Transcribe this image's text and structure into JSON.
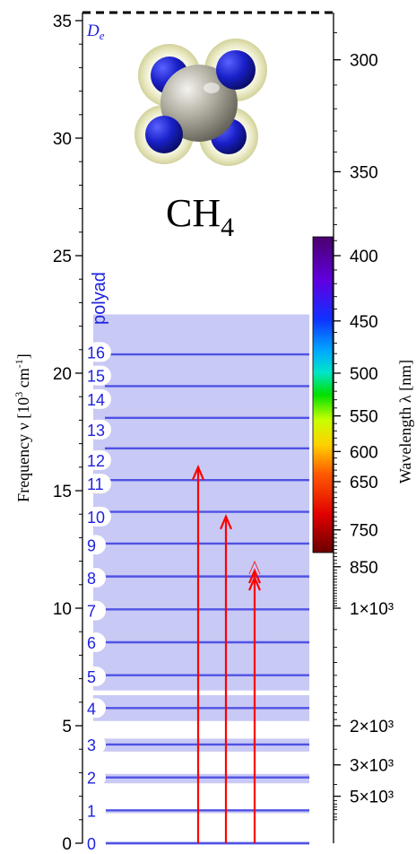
{
  "chart_data": {
    "type": "energy-level-diagram",
    "molecule": {
      "base": "CH",
      "subscript": "4"
    },
    "dissociation_label": {
      "main": "D",
      "subscript": "e"
    },
    "dissociation_energy": 36.5,
    "left_axis": {
      "label": {
        "pre": "Frequency ",
        "nu": "ν",
        "open": " [10",
        "exp": "3",
        "mid": " cm",
        "exp2": "-1",
        "close": "]"
      },
      "range": [
        0,
        36.5
      ],
      "major_ticks": [
        0,
        5,
        10,
        15,
        20,
        25,
        30,
        35
      ],
      "tick_labels": [
        "0",
        "5",
        "10",
        "15",
        "20",
        "25",
        "30",
        "35"
      ],
      "minor_step": 1
    },
    "right_axis": {
      "label": {
        "pre": "Wavelength ",
        "lambda": "λ",
        "unit": " [nm]"
      },
      "major_ticks_nm": [
        300,
        350,
        400,
        450,
        500,
        550,
        600,
        650,
        750,
        850,
        1000,
        2000,
        3000,
        5000
      ],
      "tick_labels": [
        "300",
        "350",
        "400",
        "450",
        "500",
        "550",
        "600",
        "650",
        "750",
        "850",
        "1×10³",
        "2×10³",
        "3×10³",
        "5×10³"
      ],
      "minor_ticks_nm": [
        290,
        310,
        320,
        330,
        340,
        360,
        370,
        380,
        390,
        410,
        420,
        430,
        440,
        460,
        470,
        480,
        490,
        510,
        520,
        530,
        540,
        560,
        570,
        580,
        590,
        610,
        620,
        630,
        640,
        660,
        670,
        680,
        690,
        700,
        710,
        720,
        730,
        740,
        760,
        770,
        780,
        790,
        800,
        810,
        820,
        830,
        840,
        860,
        870,
        880,
        890,
        900,
        910,
        920,
        930,
        940,
        950,
        960,
        970,
        980,
        990,
        1100,
        1200,
        1300,
        1400,
        1500,
        1600,
        1700,
        1800,
        1900,
        2500,
        4000,
        5500,
        6000,
        6500,
        7000,
        8000,
        9000,
        10000
      ]
    },
    "polyad_header": "polyad",
    "polyads": [
      {
        "n": "0",
        "bands": [
          [
            -0.06,
            0.06
          ]
        ]
      },
      {
        "n": "1",
        "bands": [
          [
            1.28,
            1.38
          ]
        ]
      },
      {
        "n": "2",
        "bands": [
          [
            2.55,
            2.95
          ]
        ]
      },
      {
        "n": "3",
        "bands": [
          [
            3.9,
            4.45
          ]
        ]
      },
      {
        "n": "4",
        "bands": [
          [
            5.2,
            6.3
          ]
        ]
      },
      {
        "n": "5",
        "bands": [
          [
            6.5,
            22.5
          ]
        ]
      },
      {
        "n": "6",
        "bands": []
      },
      {
        "n": "7",
        "bands": []
      },
      {
        "n": "8",
        "bands": []
      },
      {
        "n": "9",
        "bands": []
      },
      {
        "n": "10",
        "bands": []
      },
      {
        "n": "11",
        "bands": []
      },
      {
        "n": "12",
        "bands": []
      },
      {
        "n": "13",
        "bands": []
      },
      {
        "n": "14",
        "bands": []
      },
      {
        "n": "15",
        "bands": []
      },
      {
        "n": "16",
        "bands": []
      }
    ],
    "level_lines": [
      0,
      1.4,
      2.8,
      4.2,
      5.75,
      7.15,
      8.55,
      9.95,
      11.35,
      12.75,
      14.1,
      15.45,
      16.8,
      18.1,
      19.45,
      20.8
    ],
    "label_positions": [
      0,
      1.4,
      2.8,
      4.2,
      5.75,
      7.1,
      8.55,
      9.9,
      11.3,
      12.7,
      13.9,
      15.3,
      16.3,
      17.6,
      18.9,
      19.9,
      20.9
    ],
    "transitions": [
      {
        "from": 0,
        "to": 16.0,
        "double_head": false
      },
      {
        "from": 0,
        "to": 13.9,
        "double_head": false
      },
      {
        "from": 0,
        "to": 11.6,
        "double_head": true
      }
    ],
    "colorbar": {
      "range_nm": [
        380,
        780
      ]
    },
    "colors": {
      "band": "#c8c9f5",
      "level": "#4f52e3",
      "label": "#1f22dd",
      "arrow": "#ff0000",
      "axis": "#000000",
      "carbon": "#a9a69a",
      "hydrogen": "#141ac2",
      "cloud": "#dcdca0"
    }
  }
}
